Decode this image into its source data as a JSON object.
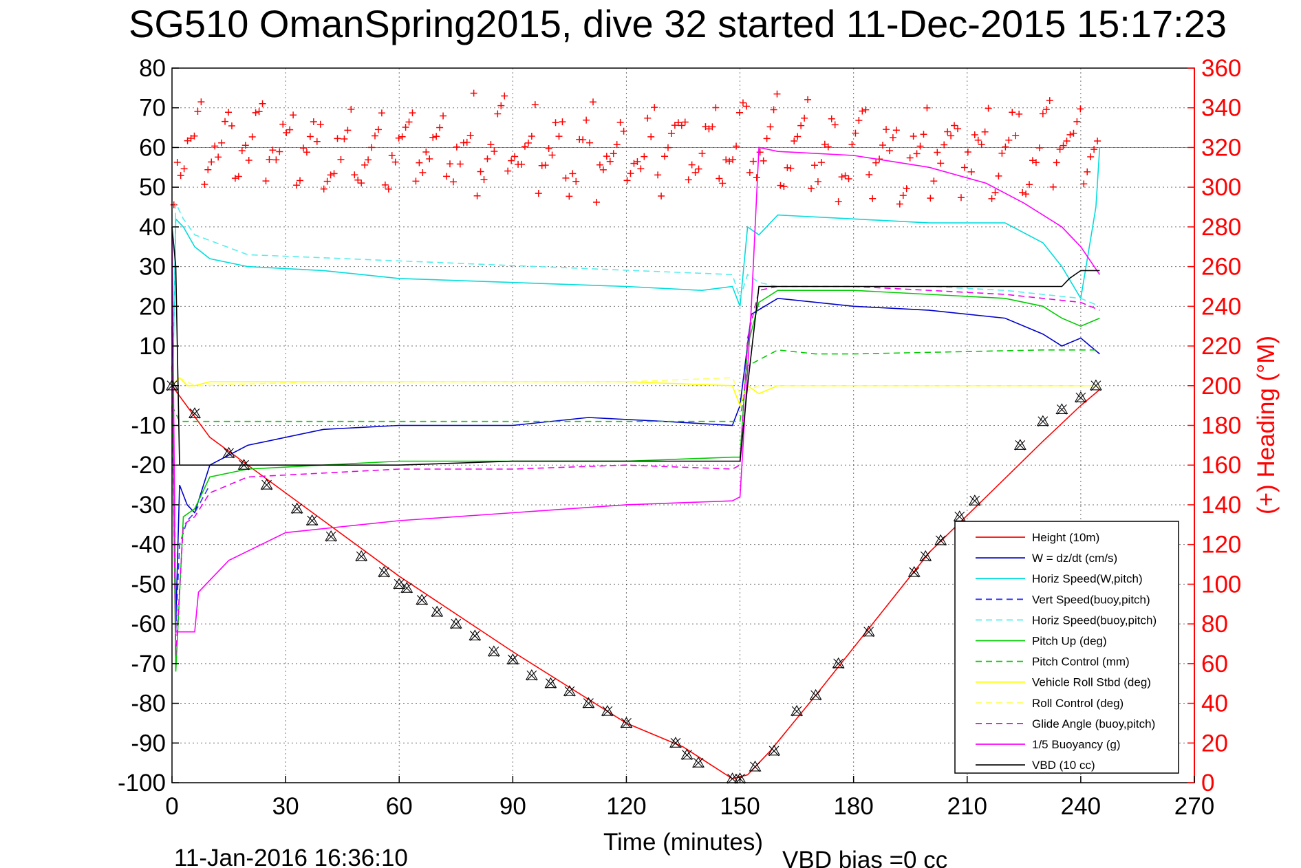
{
  "figure": {
    "title": "SG510 OmanSpring2015, dive 32 started 11-Dec-2015 15:17:23",
    "timestamp": "11-Jan-2016 16:36:10",
    "vbd_bias": "VBD bias =0 cc"
  },
  "chart_data": {
    "type": "line",
    "title": "SG510 OmanSpring2015, dive 32 started 11-Dec-2015 15:17:23",
    "xlabel": "Time (minutes)",
    "ylabel": "",
    "y2label": "(+) Heading (°M)",
    "xlim": [
      0,
      270
    ],
    "ylim": [
      -100,
      80
    ],
    "y2lim": [
      0,
      360
    ],
    "xticks": [
      0,
      30,
      60,
      90,
      120,
      150,
      180,
      210,
      240,
      270
    ],
    "yticks": [
      -100,
      -90,
      -80,
      -70,
      -60,
      -50,
      -40,
      -30,
      -20,
      -10,
      0,
      10,
      20,
      30,
      40,
      50,
      60,
      70,
      80
    ],
    "y2ticks": [
      0,
      20,
      40,
      60,
      80,
      100,
      120,
      140,
      160,
      180,
      200,
      220,
      240,
      260,
      280,
      300,
      320,
      340,
      360
    ],
    "grid": true,
    "legend_position": "bottom-right",
    "series": [
      {
        "name": "Height (10m)",
        "color": "#ff0000",
        "style": "solid",
        "x": [
          0,
          10,
          30,
          60,
          90,
          120,
          135,
          148,
          152,
          158,
          170,
          185,
          200,
          215,
          230,
          240,
          245
        ],
        "y": [
          0,
          -13,
          -27,
          -48,
          -67,
          -85,
          -91,
          -99,
          -98,
          -92,
          -78,
          -60,
          -42,
          -28,
          -14,
          -5,
          -1
        ]
      },
      {
        "name": "W = dz/dt (cm/s)",
        "color": "#0000cc",
        "style": "solid",
        "x": [
          0,
          1,
          2,
          4,
          6,
          10,
          20,
          40,
          60,
          90,
          110,
          130,
          148,
          150,
          153,
          160,
          180,
          200,
          220,
          230,
          235,
          240,
          245
        ],
        "y": [
          15,
          -60,
          -25,
          -30,
          -32,
          -20,
          -15,
          -11,
          -10,
          -10,
          -8,
          -9,
          -10,
          -5,
          18,
          22,
          20,
          19,
          17,
          13,
          10,
          12,
          8
        ]
      },
      {
        "name": "Horiz Speed(W,pitch)",
        "color": "#00dddd",
        "style": "solid",
        "x": [
          0,
          1,
          3,
          6,
          10,
          20,
          40,
          60,
          90,
          120,
          140,
          148,
          150,
          152,
          155,
          160,
          180,
          200,
          220,
          230,
          235,
          240,
          244,
          245
        ],
        "y": [
          -10,
          42,
          40,
          35,
          32,
          30,
          29,
          27,
          26,
          25,
          24,
          25,
          20,
          40,
          38,
          43,
          42,
          41,
          41,
          36,
          30,
          22,
          45,
          60
        ]
      },
      {
        "name": "Vert Speed(buoy,pitch)",
        "color": "#3333ff",
        "style": "dashed",
        "x": [
          0,
          1,
          2,
          4,
          6,
          10
        ],
        "y": [
          -5,
          -62,
          -40,
          -34,
          -32,
          -25
        ]
      },
      {
        "name": "Horiz Speed(buoy,pitch)",
        "color": "#55eeee",
        "style": "dashed",
        "x": [
          0,
          1,
          3,
          6,
          20,
          148,
          150,
          152,
          155,
          160,
          180,
          200,
          220,
          240,
          245
        ],
        "y": [
          -10,
          46,
          42,
          38,
          33,
          28,
          22,
          28,
          26,
          25,
          25,
          25,
          24,
          22,
          20
        ]
      },
      {
        "name": "Pitch Up (deg)",
        "color": "#00cc00",
        "style": "solid",
        "x": [
          0,
          1,
          3,
          6,
          10,
          20,
          40,
          60,
          90,
          120,
          148,
          150,
          152,
          155,
          160,
          180,
          200,
          220,
          230,
          235,
          240,
          245
        ],
        "y": [
          5,
          -72,
          -33,
          -31,
          -23,
          -21,
          -20,
          -19,
          -19,
          -19,
          -18,
          -18,
          10,
          21,
          24,
          24,
          23,
          22,
          20,
          17,
          15,
          17
        ]
      },
      {
        "name": "Pitch Control (mm)",
        "color": "#00cc00",
        "style": "dashed",
        "x": [
          0,
          2,
          30,
          150,
          152,
          160,
          170,
          180,
          230,
          240,
          245
        ],
        "y": [
          -5,
          -9,
          -9,
          -9,
          5,
          9,
          8,
          8,
          9,
          9,
          9
        ]
      },
      {
        "name": "Vehicle Roll Stbd (deg)",
        "color": "#ffff00",
        "style": "solid",
        "x": [
          0,
          2,
          4,
          6,
          10,
          40,
          80,
          120,
          148,
          150,
          152,
          155,
          160,
          180,
          200,
          240,
          245
        ],
        "y": [
          0,
          2,
          0,
          0,
          1,
          1,
          1,
          1,
          0,
          -5,
          0,
          -2,
          0,
          0,
          0,
          0,
          0
        ]
      },
      {
        "name": "Roll Control (deg)",
        "color": "#ffff66",
        "style": "dashed",
        "x": [
          0,
          2,
          6,
          40,
          80,
          120,
          148,
          150,
          155,
          180,
          240,
          245
        ],
        "y": [
          0,
          2,
          0,
          1,
          1,
          1,
          2,
          -2,
          0,
          0,
          0,
          0
        ]
      },
      {
        "name": "Glide Angle (buoy,pitch)",
        "color": "#ee00ee",
        "style": "dashed",
        "x": [
          0,
          1,
          3,
          6,
          10,
          20,
          40,
          60,
          90,
          120,
          148,
          150,
          152,
          155,
          160,
          180,
          200,
          220,
          230,
          240,
          245
        ],
        "y": [
          5,
          -68,
          -35,
          -33,
          -27,
          -23,
          -22,
          -21,
          -21,
          -20,
          -21,
          -20,
          12,
          24,
          25,
          25,
          24,
          23,
          22,
          21,
          19
        ]
      },
      {
        "name": "1/5 Buoyancy (g)",
        "color": "#ff00ff",
        "style": "solid",
        "x": [
          0,
          1,
          2,
          6,
          7,
          15,
          30,
          60,
          90,
          120,
          148,
          150,
          153,
          155,
          160,
          180,
          200,
          215,
          225,
          235,
          240,
          245
        ],
        "y": [
          40,
          -62,
          -62,
          -62,
          -52,
          -44,
          -37,
          -34,
          -32,
          -30,
          -29,
          -28,
          20,
          60,
          59,
          58,
          55,
          51,
          46,
          40,
          35,
          28
        ]
      },
      {
        "name": "VBD (10 cc)",
        "color": "#000000",
        "style": "solid",
        "x": [
          0,
          1,
          2,
          30,
          60,
          90,
          120,
          148,
          150,
          152,
          155,
          160,
          180,
          200,
          220,
          235,
          237,
          240,
          245
        ],
        "y": [
          40,
          30,
          -20,
          -20,
          -20,
          -19,
          -19,
          -19,
          -19,
          0,
          25,
          25,
          25,
          25,
          25,
          25,
          27,
          29,
          29
        ]
      }
    ],
    "heading": {
      "name": "(+) Heading",
      "color": "#ff0000",
      "axis": "right",
      "typical_range_deg": [
        290,
        340
      ],
      "mean_deg": 320
    },
    "markers": {
      "name": "Height samples",
      "x": [
        0,
        6,
        15,
        19,
        25,
        33,
        37,
        42,
        50,
        56,
        60,
        62,
        66,
        70,
        75,
        80,
        85,
        90,
        95,
        100,
        105,
        110,
        115,
        120,
        133,
        136,
        139,
        148,
        150,
        154,
        159,
        165,
        170,
        176,
        184,
        196,
        199,
        203,
        208,
        212,
        224,
        230,
        235,
        240,
        244
      ],
      "y": [
        0,
        -7,
        -17,
        -20,
        -25,
        -31,
        -34,
        -38,
        -43,
        -47,
        -50,
        -51,
        -54,
        -57,
        -60,
        -63,
        -67,
        -69,
        -73,
        -75,
        -77,
        -80,
        -82,
        -85,
        -90,
        -93,
        -95,
        -99,
        -99,
        -96,
        -92,
        -82,
        -78,
        -70,
        -62,
        -47,
        -43,
        -39,
        -33,
        -29,
        -15,
        -9,
        -6,
        -3,
        0
      ]
    }
  }
}
